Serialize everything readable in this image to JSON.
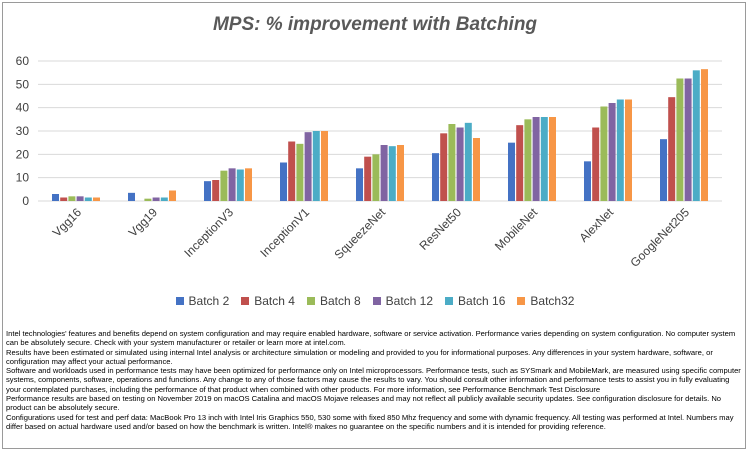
{
  "chart_data": {
    "type": "bar",
    "title": "MPS: % improvement with Batching",
    "categories": [
      "Vgg16",
      "Vgg19",
      "InceptionV3",
      "InceptionV1",
      "SqueezeNet",
      "ResNet50",
      "MobileNet",
      "AlexNet",
      "GoogleNet205"
    ],
    "series": [
      {
        "name": "Batch 2",
        "color": "#4472C4",
        "values": [
          3.0,
          3.5,
          8.5,
          16.5,
          14.0,
          20.5,
          25.0,
          17.0,
          26.5
        ]
      },
      {
        "name": "Batch 4",
        "color": "#C0504D",
        "values": [
          1.5,
          0,
          9.0,
          25.5,
          19.0,
          29.0,
          32.5,
          31.5,
          44.5
        ]
      },
      {
        "name": "Batch 8",
        "color": "#9BBB59",
        "values": [
          2.0,
          1.0,
          13.0,
          24.5,
          20.0,
          33.0,
          35.0,
          40.5,
          52.5
        ]
      },
      {
        "name": "Batch 12",
        "color": "#8064A2",
        "values": [
          2.0,
          1.5,
          14.0,
          29.5,
          24.0,
          31.5,
          36.0,
          42.0,
          52.5
        ]
      },
      {
        "name": "Batch 16",
        "color": "#4BACC6",
        "values": [
          1.5,
          1.5,
          13.5,
          30.0,
          23.5,
          33.5,
          36.0,
          43.5,
          56.0
        ]
      },
      {
        "name": "Batch32",
        "color": "#F79646",
        "values": [
          1.5,
          4.5,
          14.0,
          30.0,
          24.0,
          27.0,
          36.0,
          43.5,
          56.5
        ]
      }
    ],
    "ylim": [
      0,
      60
    ],
    "yticks": [
      0,
      10,
      20,
      30,
      40,
      50,
      60
    ],
    "grid": true,
    "legend_position": "bottom"
  },
  "notes": [
    "Intel technologies' features and benefits depend on system configuration and may require enabled hardware, software or service activation. Performance varies depending on system configuration. No computer system can be absolutely secure. Check with your system manufacturer or retailer or learn more at intel.com.",
    "Results have been estimated or simulated using internal Intel analysis or architecture simulation or modeling and provided to you for informational purposes. Any differences in your system hardware, software, or configuration may affect your actual performance.",
    "Software and workloads used in performance tests may have been optimized for performance only on Intel microprocessors. Performance tests, such as SYSmark and MobileMark, are measured using specific computer systems, components, software, operations and functions. Any change to any of those factors may cause the results to vary. You should consult other information and performance tests to assist you in fully evaluating your contemplated purchases, including the performance of that product when combined with other products. For more information, see Performance Benchmark Test Disclosure",
    "Performance results are based on testing on November 2019 on macOS Catalina and macOS Mojave releases and may not reflect all publicly available security updates. See configuration disclosure for details. No product can be absolutely secure.",
    "Configurations used for test and perf data: MacBook Pro 13 inch with Intel Iris Graphics 550, 530 some with fixed 850 Mhz frequency and some with dynamic frequency. All testing was performed at Intel. Numbers may differ based on actual hardware used and/or based on how the benchmark is written. Intel® makes no guarantee on the specific numbers and it is intended for providing reference."
  ]
}
